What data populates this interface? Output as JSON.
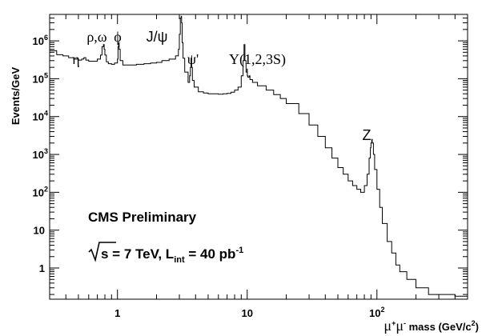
{
  "chart_data": {
    "type": "line",
    "x_scale": "log",
    "y_scale": "log",
    "xlim": [
      0.3,
      500
    ],
    "ylim": [
      0.15,
      5000000
    ],
    "ylabel": "Events/GeV",
    "xlabel_parts": {
      "mu": "μ",
      "plus": "+",
      "mu2": "μ",
      "minus": "-",
      "rest": " mass (GeV/c",
      "sup2": "2",
      "close": ")"
    },
    "y_ticks": [
      {
        "value": 1,
        "label": "1"
      },
      {
        "value": 10,
        "label": "10"
      },
      {
        "value": 100,
        "label": "10",
        "exp": "2"
      },
      {
        "value": 1000,
        "label": "10",
        "exp": "3"
      },
      {
        "value": 10000,
        "label": "10",
        "exp": "4"
      },
      {
        "value": 100000,
        "label": "10",
        "exp": "5"
      },
      {
        "value": 1000000,
        "label": "10",
        "exp": "6"
      }
    ],
    "x_ticks": [
      {
        "value": 1,
        "label": "1"
      },
      {
        "value": 10,
        "label": "10"
      },
      {
        "value": 100,
        "label": "10",
        "exp": "2"
      }
    ],
    "annotations": {
      "eta": "η",
      "rho_omega": "ρ,ω",
      "phi": "ϕ",
      "jpsi": "J/ψ",
      "psiprime": "ψ'",
      "upsilon": "Υ(1,2,3S)",
      "z": "Z"
    },
    "note1": "CMS Preliminary",
    "note2_parts": {
      "s": "s = 7 TeV,  L",
      "sub": "int",
      "rest": " = 40 pb",
      "sup": "-1"
    },
    "series": [
      {
        "x": [
          0.3,
          0.34,
          0.38,
          0.42,
          0.46,
          0.5,
          0.53,
          0.55,
          0.57,
          0.6,
          0.65,
          0.7,
          0.74,
          0.76,
          0.78,
          0.79,
          0.8,
          0.82,
          0.85,
          0.9,
          0.95,
          1.0,
          1.01,
          1.02,
          1.03,
          1.05,
          1.1,
          1.2,
          1.4,
          1.6,
          1.8,
          2.0,
          2.2,
          2.5,
          2.8,
          2.95,
          3.0,
          3.05,
          3.1,
          3.12,
          3.15,
          3.2,
          3.3,
          3.5,
          3.6,
          3.65,
          3.69,
          3.72,
          3.78,
          3.9,
          4.2,
          4.6,
          5.0,
          5.5,
          6.0,
          6.5,
          7.0,
          7.5,
          8.0,
          8.5,
          9.0,
          9.3,
          9.46,
          9.6,
          9.8,
          10.0,
          10.03,
          10.1,
          10.36,
          10.5,
          11,
          12,
          14,
          16,
          18,
          20,
          25,
          30,
          35,
          40,
          45,
          50,
          55,
          60,
          65,
          70,
          75,
          80,
          84,
          87,
          89,
          90,
          91.2,
          92,
          94,
          96,
          100,
          105,
          110,
          120,
          130,
          140,
          150,
          170,
          200,
          250,
          300,
          400,
          500
        ],
        "y": [
          550000,
          430000,
          400000,
          360000,
          330000,
          310000,
          330000,
          360000,
          310000,
          290000,
          290000,
          330000,
          420000,
          700000,
          800000,
          600000,
          420000,
          280000,
          250000,
          240000,
          260000,
          330000,
          700000,
          900000,
          600000,
          300000,
          230000,
          230000,
          240000,
          250000,
          260000,
          270000,
          300000,
          330000,
          400000,
          600000,
          1500000,
          4000000,
          4500000,
          3000000,
          900000,
          350000,
          150000,
          80000,
          120000,
          200000,
          350000,
          200000,
          90000,
          60000,
          45000,
          42000,
          40000,
          40000,
          39000,
          40000,
          41000,
          44000,
          50000,
          60000,
          120000,
          300000,
          800000,
          300000,
          150000,
          180000,
          120000,
          110000,
          120000,
          95000,
          80000,
          65000,
          50000,
          38000,
          30000,
          22000,
          12000,
          6000,
          3000,
          1500,
          800,
          450,
          300,
          200,
          150,
          120,
          100,
          150,
          300,
          800,
          1500,
          2000,
          2500,
          2000,
          1000,
          400,
          120,
          40,
          15,
          5,
          2.5,
          1.2,
          0.8,
          0.5,
          0.3,
          0.2,
          0.2,
          0.18,
          0.17
        ]
      }
    ]
  }
}
